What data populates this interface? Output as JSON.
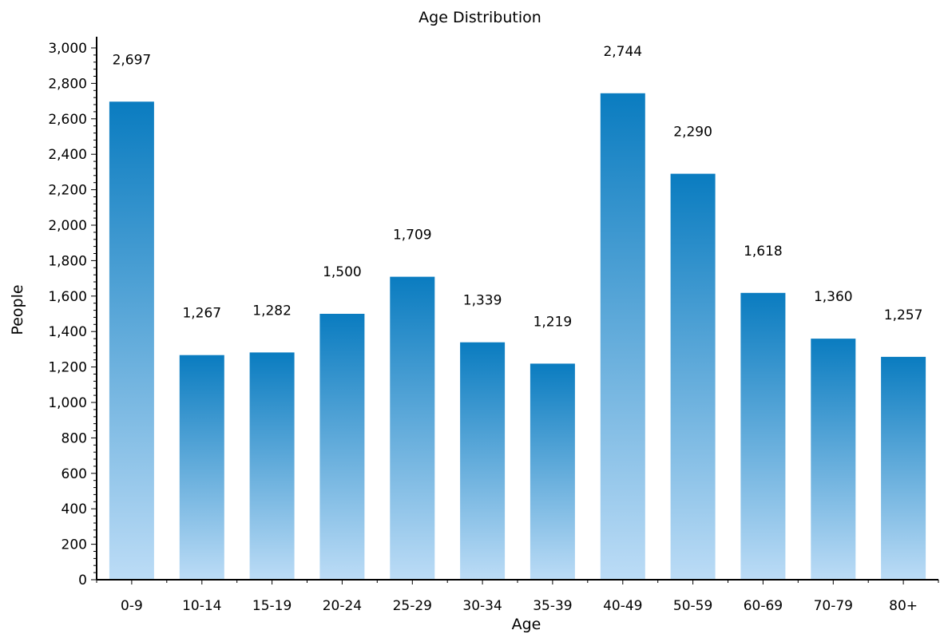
{
  "chart_data": {
    "type": "bar",
    "title": "Age Distribution",
    "xlabel": "Age",
    "ylabel": "People",
    "ylim": [
      0,
      3000
    ],
    "ytick_values": [
      0,
      200,
      400,
      600,
      800,
      1000,
      1200,
      1400,
      1600,
      1800,
      2000,
      2200,
      2400,
      2600,
      2800,
      3000
    ],
    "ytick_labels": [
      "0",
      "200",
      "400",
      "600",
      "800",
      "1,000",
      "1,200",
      "1,400",
      "1,600",
      "1,800",
      "2,000",
      "2,200",
      "2,400",
      "2,600",
      "2,800",
      "3,000"
    ],
    "categories": [
      "0-9",
      "10-14",
      "15-19",
      "20-24",
      "25-29",
      "30-34",
      "35-39",
      "40-49",
      "50-59",
      "60-69",
      "70-79",
      "80+"
    ],
    "values": [
      2697,
      1267,
      1282,
      1500,
      1709,
      1339,
      1219,
      2744,
      2290,
      1618,
      1360,
      1257
    ],
    "data_labels": [
      "2,697",
      "1,267",
      "1,282",
      "1,500",
      "1,709",
      "1,339",
      "1,219",
      "2,744",
      "2,290",
      "1,618",
      "1,360",
      "1,257"
    ],
    "grid": false,
    "legend": "none",
    "colors": {
      "bar_top": "#0a7cc0",
      "bar_bottom": "#bcdcf6",
      "axis": "#000000"
    }
  }
}
